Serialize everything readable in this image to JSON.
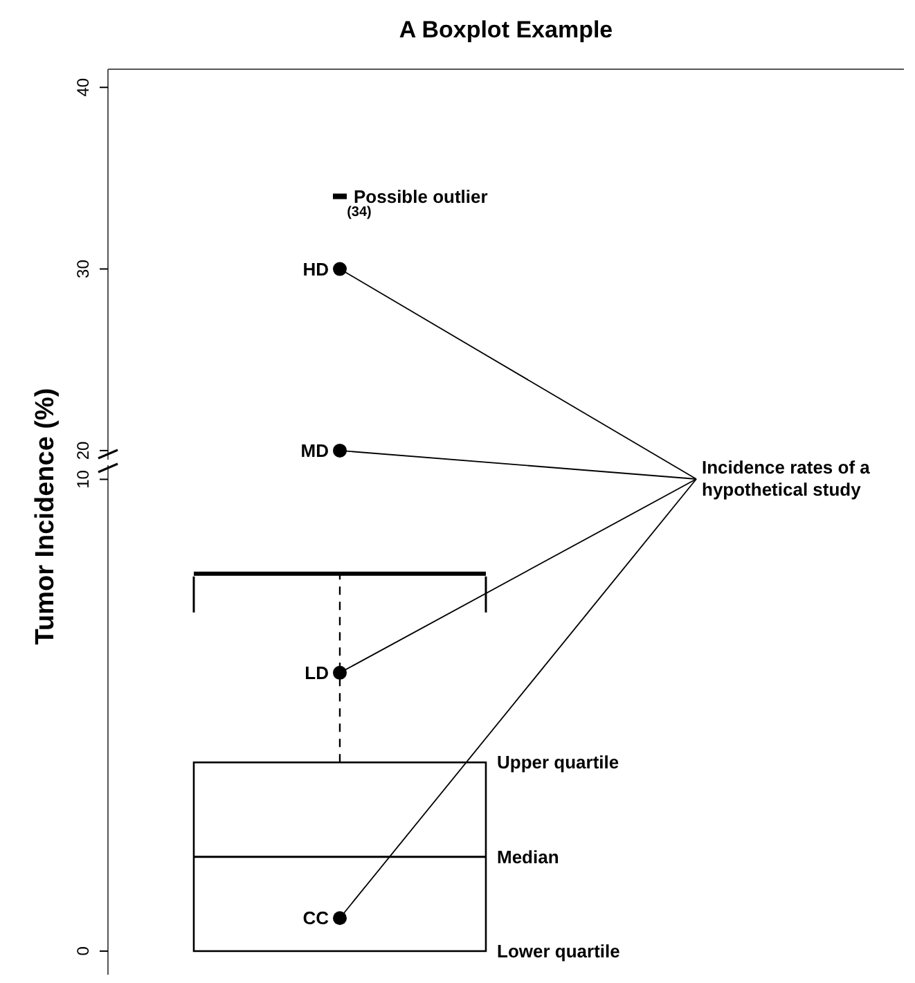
{
  "chart_data": [
    {
      "type": "scatter",
      "title": "A Boxplot Example",
      "categories": [
        null
      ],
      "ylim": [
        19.5,
        41
      ],
      "yticks": [
        20,
        30,
        40
      ],
      "tick_labels": "y",
      "marker": "circle",
      "series": [
        {
          "name": "Possible outlier",
          "color": "#000000",
          "values": [
            34
          ],
          "marker": "square",
          "value_labels": [
            "(34)"
          ]
        },
        {
          "name": "HD",
          "color": "#000000",
          "values": [
            30
          ]
        },
        {
          "name": "MD",
          "color": "#000000",
          "values": [
            20
          ]
        }
      ]
    },
    {
      "type": "box",
      "ylabel": "Tumor Incidence (%)",
      "categories": [
        null
      ],
      "ylim": [
        -0.5,
        10.3
      ],
      "yticks": [
        0,
        10
      ],
      "tick_labels": "y",
      "marker": "circle",
      "boxes": [
        {
          "low": 0,
          "q1": 0,
          "median": 2,
          "q3": 4,
          "high": 8
        }
      ],
      "series": [
        {
          "type": "scatter",
          "name": "LD",
          "color": "#000000",
          "values": [
            5.9
          ]
        },
        {
          "type": "scatter",
          "name": "CC",
          "color": "#000000",
          "values": [
            0.7
          ]
        }
      ],
      "annotations": [
        "Upper quartile",
        "Median",
        "Lower quartile",
        "Incidence rates of a hypothetical study"
      ]
    }
  ]
}
